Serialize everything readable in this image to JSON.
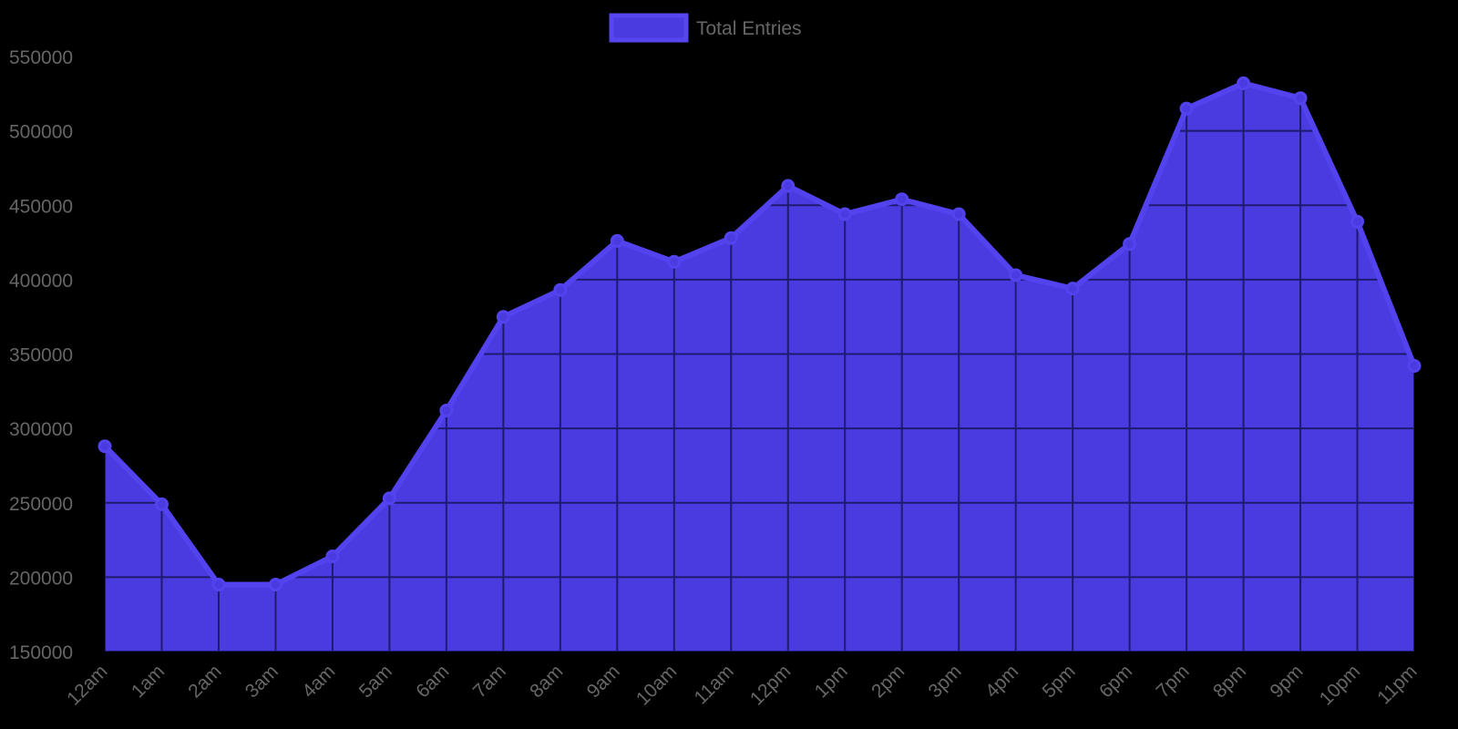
{
  "legend": {
    "label": "Total Entries",
    "swatch_fill": "#4a3be0",
    "swatch_stroke": "#5646ef"
  },
  "colors": {
    "background": "#000000",
    "area_fill": "#4a3be0",
    "line_stroke": "#5243ee",
    "grid": "#1f1a6e",
    "tick_text": "#666666"
  },
  "chart_data": {
    "type": "area",
    "title": "",
    "xlabel": "",
    "ylabel": "",
    "categories": [
      "12am",
      "1am",
      "2am",
      "3am",
      "4am",
      "5am",
      "6am",
      "7am",
      "8am",
      "9am",
      "10am",
      "11am",
      "12pm",
      "1pm",
      "2pm",
      "3pm",
      "4pm",
      "5pm",
      "6pm",
      "7pm",
      "8pm",
      "9pm",
      "10pm",
      "11pm"
    ],
    "series": [
      {
        "name": "Total Entries",
        "values": [
          288000,
          249000,
          195000,
          195000,
          214000,
          253000,
          312000,
          375000,
          393000,
          426000,
          412000,
          428000,
          463000,
          444000,
          454000,
          444000,
          403000,
          394000,
          424000,
          515000,
          532000,
          522000,
          439000,
          342000
        ]
      }
    ],
    "ylim": [
      150000,
      550000
    ],
    "yticks": [
      150000,
      200000,
      250000,
      300000,
      350000,
      400000,
      450000,
      500000,
      550000
    ],
    "ytick_labels": [
      "150000",
      "200000",
      "250000",
      "300000",
      "350000",
      "400000",
      "450000",
      "500000",
      "550000"
    ],
    "grid": true,
    "legend_position": "top",
    "x_label_rotation": -45
  }
}
